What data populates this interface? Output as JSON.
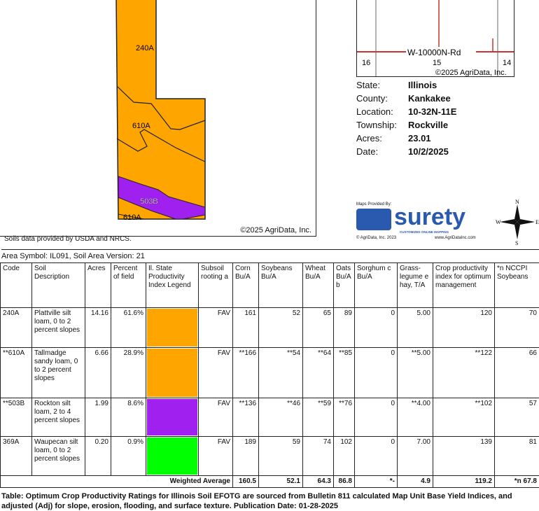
{
  "soil_map": {
    "labels": [
      "240A",
      "610A",
      "503B",
      "610A"
    ],
    "copyright": "©2025 AgriData, Inc.",
    "colors": {
      "orange": "#FFA500",
      "purple": "#A020F0"
    }
  },
  "soils_note": "Soils data provided by USDA and NRCS.",
  "area_symbol": "Area Symbol: IL091, Soil Area Version: 21",
  "location_map": {
    "road": "W-10000N-Rd",
    "sections": [
      "16",
      "15",
      "14"
    ],
    "copyright": "©2025 AgriData, Inc."
  },
  "info": [
    {
      "label": "State:",
      "value": "Illinois"
    },
    {
      "label": "County:",
      "value": "Kankakee"
    },
    {
      "label": "Location:",
      "value": "10-32N-11E"
    },
    {
      "label": "Township:",
      "value": "Rockville"
    },
    {
      "label": "Acres:",
      "value": "23.01"
    },
    {
      "label": "Date:",
      "value": "10/2/2025"
    }
  ],
  "logo": {
    "provided_by": "Maps Provided By:",
    "brand": "surety",
    "tagline": "CUSTOMIZED ONLINE MAPPING",
    "copyright": "© AgriData, Inc. 2023",
    "url": "www.AgriDataInc.com"
  },
  "compass": {
    "n": "N",
    "s": "S",
    "e": "E",
    "w": "W"
  },
  "table": {
    "headers": [
      "Code",
      "Soil Description",
      "Acres",
      "Percent of field",
      "Il. State Productivity Index Legend",
      "Subsoil rooting a",
      "Corn Bu/A",
      "Soybeans Bu/A",
      "Wheat Bu/A",
      "Oats Bu/A b",
      "Sorghum c Bu/A",
      "Grass-legume e hay, T/A",
      "Crop productivity index for optimum management",
      "*n NCCPI Soybeans"
    ],
    "rows": [
      {
        "code": "240A",
        "desc": "Plattville silt loam, 0 to 2 percent slopes",
        "acres": "14.16",
        "pct": "61.6%",
        "color": "#FFA500",
        "subsoil": "FAV",
        "corn": "161",
        "soy": "52",
        "wheat": "65",
        "oats": "89",
        "sorghum": "0",
        "hay": "5.00",
        "cpi": "120",
        "nccpi": "70"
      },
      {
        "code": "**610A",
        "desc": "Tallmadge sandy loam, 0 to 2 percent slopes",
        "acres": "6.66",
        "pct": "28.9%",
        "color": "#FFA500",
        "subsoil": "FAV",
        "corn": "**166",
        "soy": "**54",
        "wheat": "**64",
        "oats": "**85",
        "sorghum": "0",
        "hay": "**5.00",
        "cpi": "**122",
        "nccpi": "66"
      },
      {
        "code": "**503B",
        "desc": "Rockton silt loam, 2 to 4 percent slopes",
        "acres": "1.99",
        "pct": "8.6%",
        "color": "#A020F0",
        "subsoil": "FAV",
        "corn": "**136",
        "soy": "**46",
        "wheat": "**59",
        "oats": "**76",
        "sorghum": "0",
        "hay": "**4.00",
        "cpi": "**102",
        "nccpi": "57"
      },
      {
        "code": "369A",
        "desc": "Waupecan silt loam, 0 to 2 percent slopes",
        "acres": "0.20",
        "pct": "0.9%",
        "color": "#00FF00",
        "subsoil": "FAV",
        "corn": "189",
        "soy": "59",
        "wheat": "74",
        "oats": "102",
        "sorghum": "0",
        "hay": "7.00",
        "cpi": "139",
        "nccpi": "81"
      }
    ],
    "weighted": {
      "label": "Weighted Average",
      "corn": "160.5",
      "soy": "52.1",
      "wheat": "64.3",
      "oats": "86.8",
      "sorghum": "*-",
      "hay": "4.9",
      "cpi": "119.2",
      "nccpi": "*n 67.8"
    }
  },
  "caption": "Table: Optimum Crop Productivity Ratings for Illinois Soil EFOTG are sourced from Bulletin 811 calculated Map Unit Base Yield Indices, and adjusted (Adj) for slope, erosion, flooding, and surface texture. Publication Date: 01-28-2025"
}
